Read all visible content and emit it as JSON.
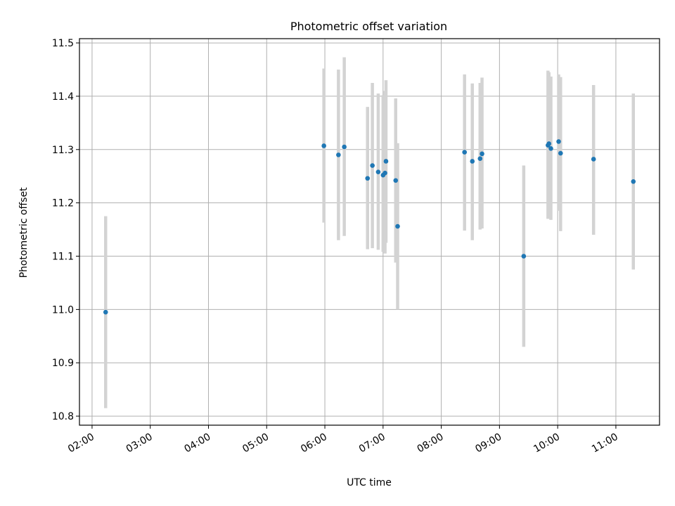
{
  "chart_data": {
    "type": "scatter",
    "title": "Photometric offset variation",
    "xlabel": "UTC time",
    "ylabel": "Photometric offset",
    "x_ticks": [
      "02:00",
      "03:00",
      "04:00",
      "05:00",
      "06:00",
      "07:00",
      "08:00",
      "09:00",
      "10:00",
      "11:00"
    ],
    "y_ticks": [
      10.8,
      10.9,
      11.0,
      11.1,
      11.2,
      11.3,
      11.4,
      11.5
    ],
    "xlim": [
      "01:47",
      "11:45"
    ],
    "ylim": [
      10.783,
      11.508
    ],
    "grid": true,
    "marker_color": "#1f77b4",
    "errorbar_color": "#d3d3d3",
    "series": [
      {
        "points": [
          {
            "x": "02:14",
            "y": 10.995,
            "ylow": 10.815,
            "yhigh": 11.175
          },
          {
            "x": "05:59",
            "y": 11.307,
            "ylow": 11.163,
            "yhigh": 11.452
          },
          {
            "x": "06:14",
            "y": 11.29,
            "ylow": 11.13,
            "yhigh": 11.45
          },
          {
            "x": "06:20",
            "y": 11.305,
            "ylow": 11.138,
            "yhigh": 11.473
          },
          {
            "x": "06:44",
            "y": 11.246,
            "ylow": 11.113,
            "yhigh": 11.38
          },
          {
            "x": "06:49",
            "y": 11.27,
            "ylow": 11.115,
            "yhigh": 11.425
          },
          {
            "x": "06:55",
            "y": 11.258,
            "ylow": 11.112,
            "yhigh": 11.405
          },
          {
            "x": "07:00",
            "y": 11.252,
            "ylow": 11.108,
            "yhigh": 11.402
          },
          {
            "x": "07:02",
            "y": 11.256,
            "ylow": 11.105,
            "yhigh": 11.41
          },
          {
            "x": "07:03",
            "y": 11.278,
            "ylow": 11.125,
            "yhigh": 11.43
          },
          {
            "x": "07:13",
            "y": 11.242,
            "ylow": 11.088,
            "yhigh": 11.396
          },
          {
            "x": "07:15",
            "y": 11.156,
            "ylow": 11.0,
            "yhigh": 11.312
          },
          {
            "x": "08:24",
            "y": 11.295,
            "ylow": 11.148,
            "yhigh": 11.441
          },
          {
            "x": "08:32",
            "y": 11.278,
            "ylow": 11.13,
            "yhigh": 11.424
          },
          {
            "x": "08:40",
            "y": 11.283,
            "ylow": 11.15,
            "yhigh": 11.425
          },
          {
            "x": "08:42",
            "y": 11.292,
            "ylow": 11.152,
            "yhigh": 11.435
          },
          {
            "x": "09:25",
            "y": 11.1,
            "ylow": 10.93,
            "yhigh": 11.27
          },
          {
            "x": "09:50",
            "y": 11.308,
            "ylow": 11.17,
            "yhigh": 11.448
          },
          {
            "x": "09:51",
            "y": 11.311,
            "ylow": 11.172,
            "yhigh": 11.445
          },
          {
            "x": "09:53",
            "y": 11.302,
            "ylow": 11.168,
            "yhigh": 11.437
          },
          {
            "x": "10:01",
            "y": 11.315,
            "ylow": 11.185,
            "yhigh": 11.441
          },
          {
            "x": "10:03",
            "y": 11.293,
            "ylow": 11.147,
            "yhigh": 11.436
          },
          {
            "x": "10:37",
            "y": 11.282,
            "ylow": 11.14,
            "yhigh": 11.421
          },
          {
            "x": "11:18",
            "y": 11.24,
            "ylow": 11.075,
            "yhigh": 11.405
          }
        ]
      }
    ]
  }
}
